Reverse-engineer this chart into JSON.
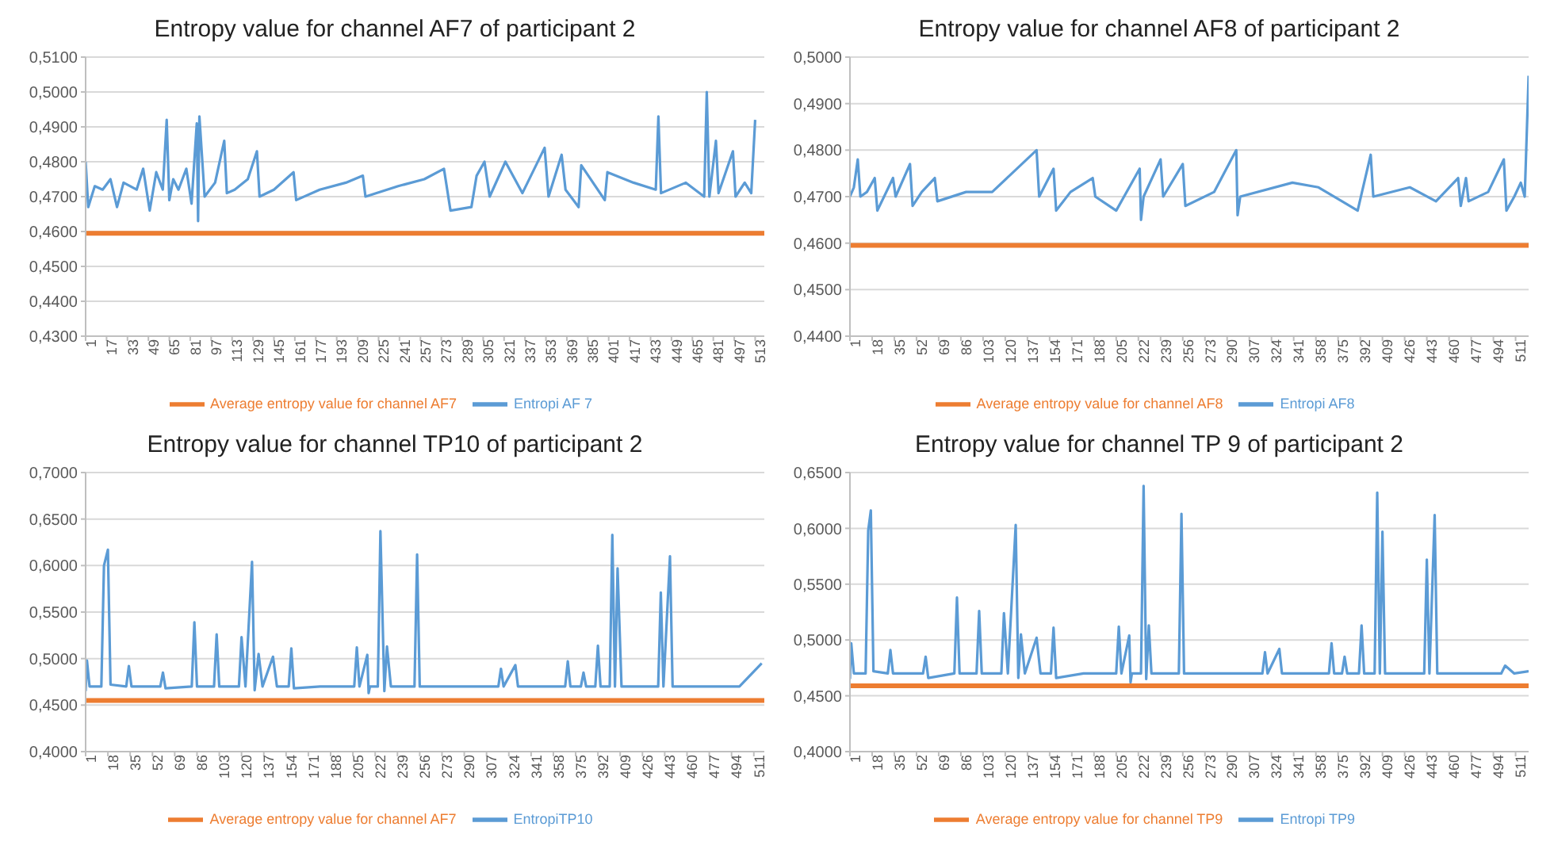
{
  "chart_data": [
    {
      "type": "line",
      "title": "Entropy value for channel AF7 of participant 2",
      "xlim": [
        1,
        520
      ],
      "xticks": [
        1,
        17,
        33,
        49,
        65,
        81,
        97,
        113,
        129,
        145,
        161,
        177,
        193,
        209,
        225,
        241,
        257,
        273,
        289,
        305,
        321,
        337,
        353,
        369,
        385,
        401,
        417,
        433,
        449,
        465,
        481,
        497,
        513
      ],
      "ylim": [
        0.43,
        0.51
      ],
      "yticks": [
        {
          "value": 0.43,
          "label": "0,4300"
        },
        {
          "value": 0.44,
          "label": "0,4400"
        },
        {
          "value": 0.45,
          "label": "0,4500"
        },
        {
          "value": 0.46,
          "label": "0,4600"
        },
        {
          "value": 0.47,
          "label": "0,4700"
        },
        {
          "value": 0.48,
          "label": "0,4800"
        },
        {
          "value": 0.49,
          "label": "0,4900"
        },
        {
          "value": 0.5,
          "label": "0,5000"
        },
        {
          "value": 0.51,
          "label": "0,5100"
        }
      ],
      "grid": "y",
      "legend": "bottom",
      "marker": "none",
      "line_style": "solid",
      "series": [
        {
          "name": "Entropi AF 7",
          "color": "#5b9bd5",
          "x": [
            1,
            3,
            8,
            14,
            20,
            25,
            30,
            40,
            45,
            50,
            55,
            60,
            63,
            65,
            68,
            72,
            78,
            82,
            86,
            87,
            88,
            92,
            100,
            107,
            109,
            115,
            125,
            132,
            134,
            145,
            160,
            162,
            180,
            200,
            213,
            215,
            240,
            260,
            275,
            280,
            296,
            300,
            306,
            310,
            322,
            335,
            352,
            355,
            365,
            368,
            378,
            380,
            398,
            400,
            420,
            437,
            439,
            441,
            460,
            474,
            476,
            478,
            483,
            485,
            496,
            498,
            505,
            510,
            513
          ],
          "values": [
            0.48,
            0.467,
            0.473,
            0.472,
            0.475,
            0.467,
            0.474,
            0.472,
            0.478,
            0.466,
            0.477,
            0.472,
            0.492,
            0.469,
            0.475,
            0.472,
            0.478,
            0.468,
            0.491,
            0.463,
            0.493,
            0.47,
            0.474,
            0.486,
            0.471,
            0.472,
            0.475,
            0.483,
            0.47,
            0.472,
            0.477,
            0.469,
            0.472,
            0.474,
            0.476,
            0.47,
            0.473,
            0.475,
            0.478,
            0.466,
            0.467,
            0.476,
            0.48,
            0.47,
            0.48,
            0.471,
            0.484,
            0.47,
            0.482,
            0.472,
            0.467,
            0.479,
            0.469,
            0.477,
            0.474,
            0.472,
            0.493,
            0.471,
            0.474,
            0.47,
            0.5,
            0.47,
            0.486,
            0.471,
            0.483,
            0.47,
            0.474,
            0.471,
            0.492
          ]
        },
        {
          "name": "Average entropy value for channel AF7",
          "color": "#ed7d31",
          "x": [
            1,
            520
          ],
          "values": [
            0.4595,
            0.4595
          ]
        }
      ]
    },
    {
      "type": "line",
      "title": "Entropy value for channel AF8 of participant 2",
      "xlim": [
        1,
        521
      ],
      "xticks": [
        1,
        18,
        35,
        52,
        69,
        86,
        103,
        120,
        137,
        154,
        171,
        188,
        205,
        222,
        239,
        256,
        273,
        290,
        307,
        324,
        341,
        358,
        375,
        392,
        409,
        426,
        443,
        460,
        477,
        494,
        511
      ],
      "ylim": [
        0.44,
        0.5
      ],
      "yticks": [
        {
          "value": 0.44,
          "label": "0,4400"
        },
        {
          "value": 0.45,
          "label": "0,4500"
        },
        {
          "value": 0.46,
          "label": "0,4600"
        },
        {
          "value": 0.47,
          "label": "0,4700"
        },
        {
          "value": 0.48,
          "label": "0,4800"
        },
        {
          "value": 0.49,
          "label": "0,4900"
        },
        {
          "value": 0.5,
          "label": "0,5000"
        }
      ],
      "grid": "y",
      "legend": "bottom",
      "marker": "none",
      "line_style": "solid",
      "series": [
        {
          "name": "Entropi AF8",
          "color": "#5b9bd5",
          "x": [
            1,
            4,
            7,
            9,
            14,
            20,
            22,
            34,
            36,
            47,
            49,
            56,
            66,
            68,
            90,
            110,
            144,
            146,
            157,
            159,
            170,
            187,
            189,
            205,
            223,
            224,
            226,
            239,
            241,
            256,
            258,
            280,
            297,
            298,
            300,
            340,
            360,
            390,
            400,
            402,
            430,
            450,
            467,
            469,
            473,
            475,
            490,
            502,
            504,
            510,
            515,
            518,
            521
          ],
          "values": [
            0.47,
            0.472,
            0.478,
            0.47,
            0.471,
            0.474,
            0.467,
            0.474,
            0.47,
            0.477,
            0.468,
            0.471,
            0.474,
            0.469,
            0.471,
            0.471,
            0.48,
            0.47,
            0.476,
            0.467,
            0.471,
            0.474,
            0.47,
            0.467,
            0.476,
            0.465,
            0.47,
            0.478,
            0.47,
            0.477,
            0.468,
            0.471,
            0.48,
            0.466,
            0.47,
            0.473,
            0.472,
            0.467,
            0.479,
            0.47,
            0.472,
            0.469,
            0.474,
            0.468,
            0.474,
            0.469,
            0.471,
            0.478,
            0.467,
            0.47,
            0.473,
            0.47,
            0.496
          ]
        },
        {
          "name": "Average entropy value for channel AF8",
          "color": "#ed7d31",
          "x": [
            1,
            521
          ],
          "values": [
            0.4595,
            0.4595
          ]
        }
      ]
    },
    {
      "type": "line",
      "title": "Entropy value for channel TP10 of participant 2",
      "xlim": [
        1,
        519
      ],
      "xticks": [
        1,
        18,
        35,
        52,
        69,
        86,
        103,
        120,
        137,
        154,
        171,
        188,
        205,
        222,
        239,
        256,
        273,
        290,
        307,
        324,
        341,
        358,
        375,
        392,
        409,
        426,
        443,
        460,
        477,
        494,
        511
      ],
      "ylim": [
        0.4,
        0.7
      ],
      "yticks": [
        {
          "value": 0.4,
          "label": "0,4000"
        },
        {
          "value": 0.45,
          "label": "0,4500"
        },
        {
          "value": 0.5,
          "label": "0,5000"
        },
        {
          "value": 0.55,
          "label": "0,5500"
        },
        {
          "value": 0.6,
          "label": "0,6000"
        },
        {
          "value": 0.65,
          "label": "0,6500"
        },
        {
          "value": 0.7,
          "label": "0,7000"
        }
      ],
      "grid": "y",
      "legend": "bottom",
      "marker": "none",
      "line_style": "solid",
      "series": [
        {
          "name": "EntropiTP10",
          "color": "#5b9bd5",
          "x": [
            1,
            2,
            4,
            13,
            15,
            18,
            20,
            32,
            34,
            36,
            58,
            60,
            62,
            82,
            84,
            86,
            99,
            101,
            103,
            118,
            120,
            123,
            128,
            130,
            133,
            136,
            144,
            147,
            156,
            158,
            160,
            180,
            206,
            208,
            210,
            216,
            217,
            218,
            224,
            226,
            229,
            231,
            234,
            252,
            254,
            256,
            316,
            318,
            320,
            329,
            331,
            367,
            369,
            371,
            379,
            381,
            383,
            390,
            392,
            394,
            401,
            403,
            405,
            407,
            410,
            438,
            440,
            442,
            447,
            449,
            500,
            517
          ],
          "values": [
            0.465,
            0.498,
            0.47,
            0.47,
            0.6,
            0.617,
            0.472,
            0.47,
            0.492,
            0.47,
            0.47,
            0.485,
            0.468,
            0.47,
            0.539,
            0.47,
            0.47,
            0.526,
            0.47,
            0.47,
            0.523,
            0.47,
            0.604,
            0.466,
            0.505,
            0.47,
            0.502,
            0.47,
            0.47,
            0.511,
            0.468,
            0.47,
            0.47,
            0.512,
            0.47,
            0.504,
            0.463,
            0.47,
            0.47,
            0.637,
            0.465,
            0.513,
            0.47,
            0.47,
            0.612,
            0.47,
            0.47,
            0.489,
            0.47,
            0.493,
            0.47,
            0.47,
            0.497,
            0.47,
            0.47,
            0.485,
            0.47,
            0.47,
            0.514,
            0.47,
            0.47,
            0.633,
            0.47,
            0.597,
            0.47,
            0.47,
            0.571,
            0.47,
            0.61,
            0.47,
            0.47,
            0.495
          ]
        },
        {
          "name": "Average entropy value for channel AF7",
          "color": "#ed7d31",
          "x": [
            1,
            519
          ],
          "values": [
            0.455,
            0.455
          ]
        }
      ]
    },
    {
      "type": "line",
      "title": "Entropy value for channel TP 9 of participant 2",
      "xlim": [
        1,
        521
      ],
      "xticks": [
        1,
        18,
        35,
        52,
        69,
        86,
        103,
        120,
        137,
        154,
        171,
        188,
        205,
        222,
        239,
        256,
        273,
        290,
        307,
        324,
        341,
        358,
        375,
        392,
        409,
        426,
        443,
        460,
        477,
        494,
        511
      ],
      "ylim": [
        0.4,
        0.65
      ],
      "yticks": [
        {
          "value": 0.4,
          "label": "0,4000"
        },
        {
          "value": 0.45,
          "label": "0,4500"
        },
        {
          "value": 0.5,
          "label": "0,5000"
        },
        {
          "value": 0.55,
          "label": "0,5500"
        },
        {
          "value": 0.6,
          "label": "0,6000"
        },
        {
          "value": 0.65,
          "label": "0,6500"
        }
      ],
      "grid": "y",
      "legend": "bottom",
      "marker": "none",
      "line_style": "solid",
      "series": [
        {
          "name": "Entropi TP9",
          "color": "#5b9bd5",
          "x": [
            1,
            2,
            4,
            13,
            15,
            17,
            19,
            30,
            32,
            34,
            57,
            59,
            61,
            81,
            83,
            85,
            98,
            100,
            102,
            117,
            119,
            122,
            128,
            130,
            132,
            135,
            144,
            147,
            155,
            157,
            159,
            180,
            205,
            207,
            209,
            215,
            216,
            217,
            224,
            226,
            228,
            230,
            232,
            253,
            255,
            257,
            317,
            319,
            321,
            330,
            332,
            368,
            370,
            372,
            378,
            380,
            382,
            391,
            393,
            395,
            403,
            405,
            407,
            409,
            411,
            441,
            443,
            445,
            449,
            451,
            500,
            503,
            510,
            521
          ],
          "values": [
            0.465,
            0.497,
            0.47,
            0.47,
            0.598,
            0.616,
            0.472,
            0.47,
            0.491,
            0.47,
            0.47,
            0.485,
            0.466,
            0.47,
            0.538,
            0.47,
            0.47,
            0.526,
            0.47,
            0.47,
            0.524,
            0.47,
            0.603,
            0.466,
            0.505,
            0.47,
            0.502,
            0.47,
            0.47,
            0.511,
            0.466,
            0.47,
            0.47,
            0.512,
            0.47,
            0.504,
            0.462,
            0.47,
            0.47,
            0.638,
            0.465,
            0.513,
            0.47,
            0.47,
            0.613,
            0.47,
            0.47,
            0.489,
            0.47,
            0.492,
            0.47,
            0.47,
            0.497,
            0.47,
            0.47,
            0.485,
            0.47,
            0.47,
            0.513,
            0.47,
            0.47,
            0.632,
            0.47,
            0.597,
            0.47,
            0.47,
            0.572,
            0.47,
            0.612,
            0.47,
            0.47,
            0.477,
            0.47,
            0.472
          ]
        },
        {
          "name": "Average entropy value for channel TP9",
          "color": "#ed7d31",
          "x": [
            1,
            521
          ],
          "values": [
            0.459,
            0.459
          ]
        }
      ]
    }
  ]
}
